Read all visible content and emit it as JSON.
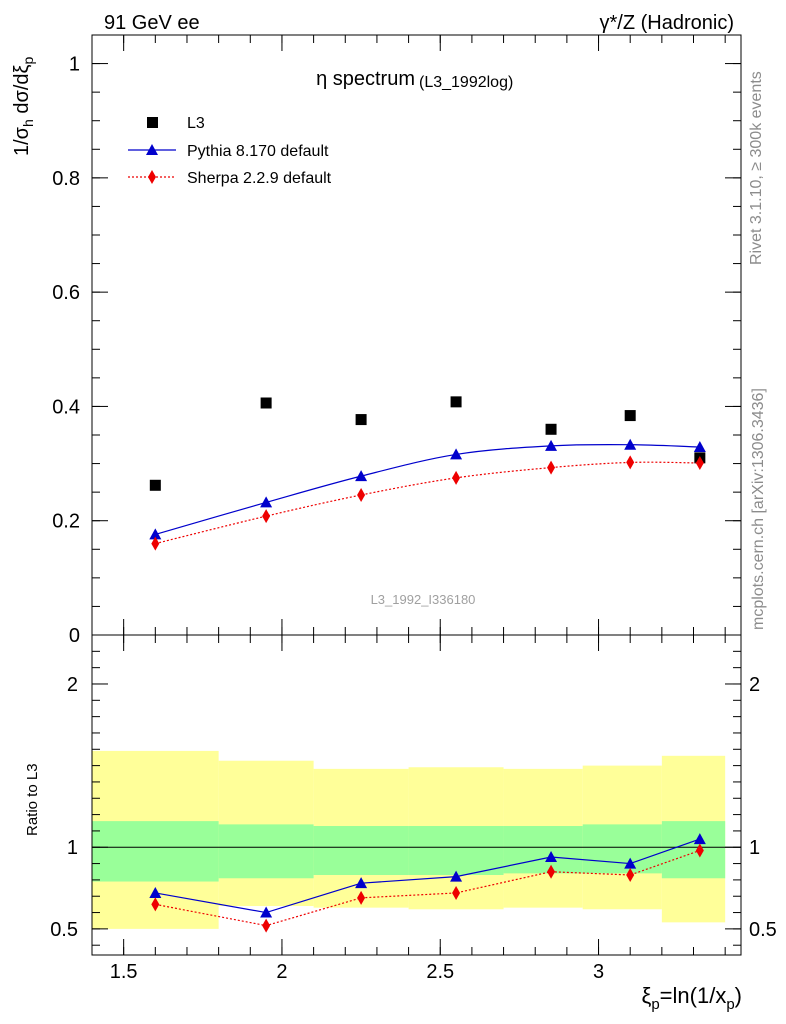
{
  "header": {
    "left": "91 GeV ee",
    "right": "γ*/Z (Hadronic)"
  },
  "side_text": {
    "rivet": "Rivet 3.1.10, ≥ 300k events",
    "mcplots": "mcplots.cern.ch [arXiv:1306.3436]"
  },
  "chart_data": [
    {
      "type": "scatter",
      "panel": "main",
      "title_main": "η spectrum",
      "title_sub": "(L3_1992log)",
      "watermark": "L3_1992_I336180",
      "ylabel": "1/σ_h dσ/dξ_p",
      "ylim": [
        0,
        1.05
      ],
      "xlim": [
        1.4,
        3.45
      ],
      "yticks": [
        {
          "v": 0,
          "label": "0"
        },
        {
          "v": 0.2,
          "label": "0.2"
        },
        {
          "v": 0.4,
          "label": "0.4"
        },
        {
          "v": 0.6,
          "label": "0.6"
        },
        {
          "v": 0.8,
          "label": "0.8"
        },
        {
          "v": 1.0,
          "label": "1"
        }
      ],
      "legend": {
        "position": "top-left",
        "entries": [
          "L3",
          "Pythia 8.170 default",
          "Sherpa 2.2.9 default"
        ]
      },
      "series": [
        {
          "name": "L3",
          "style": "data",
          "color": "#000000",
          "x": [
            1.6,
            1.95,
            2.25,
            2.55,
            2.85,
            3.1,
            3.32
          ],
          "y": [
            0.262,
            0.406,
            0.377,
            0.408,
            0.36,
            0.384,
            0.31
          ]
        },
        {
          "name": "Pythia 8.170 default",
          "style": "line-triangle",
          "color": "#0000cc",
          "x": [
            1.6,
            1.95,
            2.25,
            2.55,
            2.85,
            3.1,
            3.32
          ],
          "y": [
            0.176,
            0.232,
            0.278,
            0.316,
            0.331,
            0.333,
            0.329
          ]
        },
        {
          "name": "Sherpa 2.2.9 default",
          "style": "dotted-diamond",
          "color": "#ee0000",
          "x": [
            1.6,
            1.95,
            2.25,
            2.55,
            2.85,
            3.1,
            3.32
          ],
          "y": [
            0.16,
            0.208,
            0.245,
            0.275,
            0.293,
            0.302,
            0.301
          ]
        }
      ]
    },
    {
      "type": "line",
      "panel": "ratio",
      "ylabel": "Ratio to L3",
      "xlabel": "ξ_p=ln(1/x_p)",
      "ylim": [
        0.34,
        2.3
      ],
      "xlim": [
        1.4,
        3.45
      ],
      "yticks": [
        {
          "v": 0.5,
          "label": "0.5"
        },
        {
          "v": 1,
          "label": "1"
        },
        {
          "v": 2,
          "label": "2"
        }
      ],
      "xticks": [
        {
          "v": 1.5,
          "label": "1.5"
        },
        {
          "v": 2,
          "label": "2"
        },
        {
          "v": 2.5,
          "label": "2.5"
        },
        {
          "v": 3,
          "label": "3"
        }
      ],
      "bands": [
        {
          "x0": 1.4,
          "x1": 1.8,
          "inner": [
            0.79,
            1.16
          ],
          "outer": [
            0.5,
            1.59
          ]
        },
        {
          "x0": 1.8,
          "x1": 2.1,
          "inner": [
            0.81,
            1.14
          ],
          "outer": [
            0.64,
            1.53
          ]
        },
        {
          "x0": 2.1,
          "x1": 2.4,
          "inner": [
            0.83,
            1.13
          ],
          "outer": [
            0.63,
            1.48
          ]
        },
        {
          "x0": 2.4,
          "x1": 2.7,
          "inner": [
            0.83,
            1.13
          ],
          "outer": [
            0.62,
            1.49
          ]
        },
        {
          "x0": 2.7,
          "x1": 2.95,
          "inner": [
            0.84,
            1.13
          ],
          "outer": [
            0.63,
            1.48
          ]
        },
        {
          "x0": 2.95,
          "x1": 3.2,
          "inner": [
            0.84,
            1.14
          ],
          "outer": [
            0.62,
            1.5
          ]
        },
        {
          "x0": 3.2,
          "x1": 3.4,
          "inner": [
            0.81,
            1.16
          ],
          "outer": [
            0.54,
            1.56
          ]
        }
      ],
      "band_colors": {
        "inner": "#99ff99",
        "outer": "#ffff99"
      },
      "series": [
        {
          "name": "Pythia 8.170 default",
          "style": "line-triangle",
          "color": "#0000cc",
          "x": [
            1.6,
            1.95,
            2.25,
            2.55,
            2.85,
            3.1,
            3.32
          ],
          "y": [
            0.72,
            0.6,
            0.78,
            0.82,
            0.94,
            0.9,
            1.05
          ]
        },
        {
          "name": "Sherpa 2.2.9 default",
          "style": "dotted-diamond",
          "color": "#ee0000",
          "x": [
            1.6,
            1.95,
            2.25,
            2.55,
            2.85,
            3.1,
            3.32
          ],
          "y": [
            0.65,
            0.52,
            0.69,
            0.72,
            0.85,
            0.83,
            0.98
          ]
        }
      ]
    }
  ]
}
